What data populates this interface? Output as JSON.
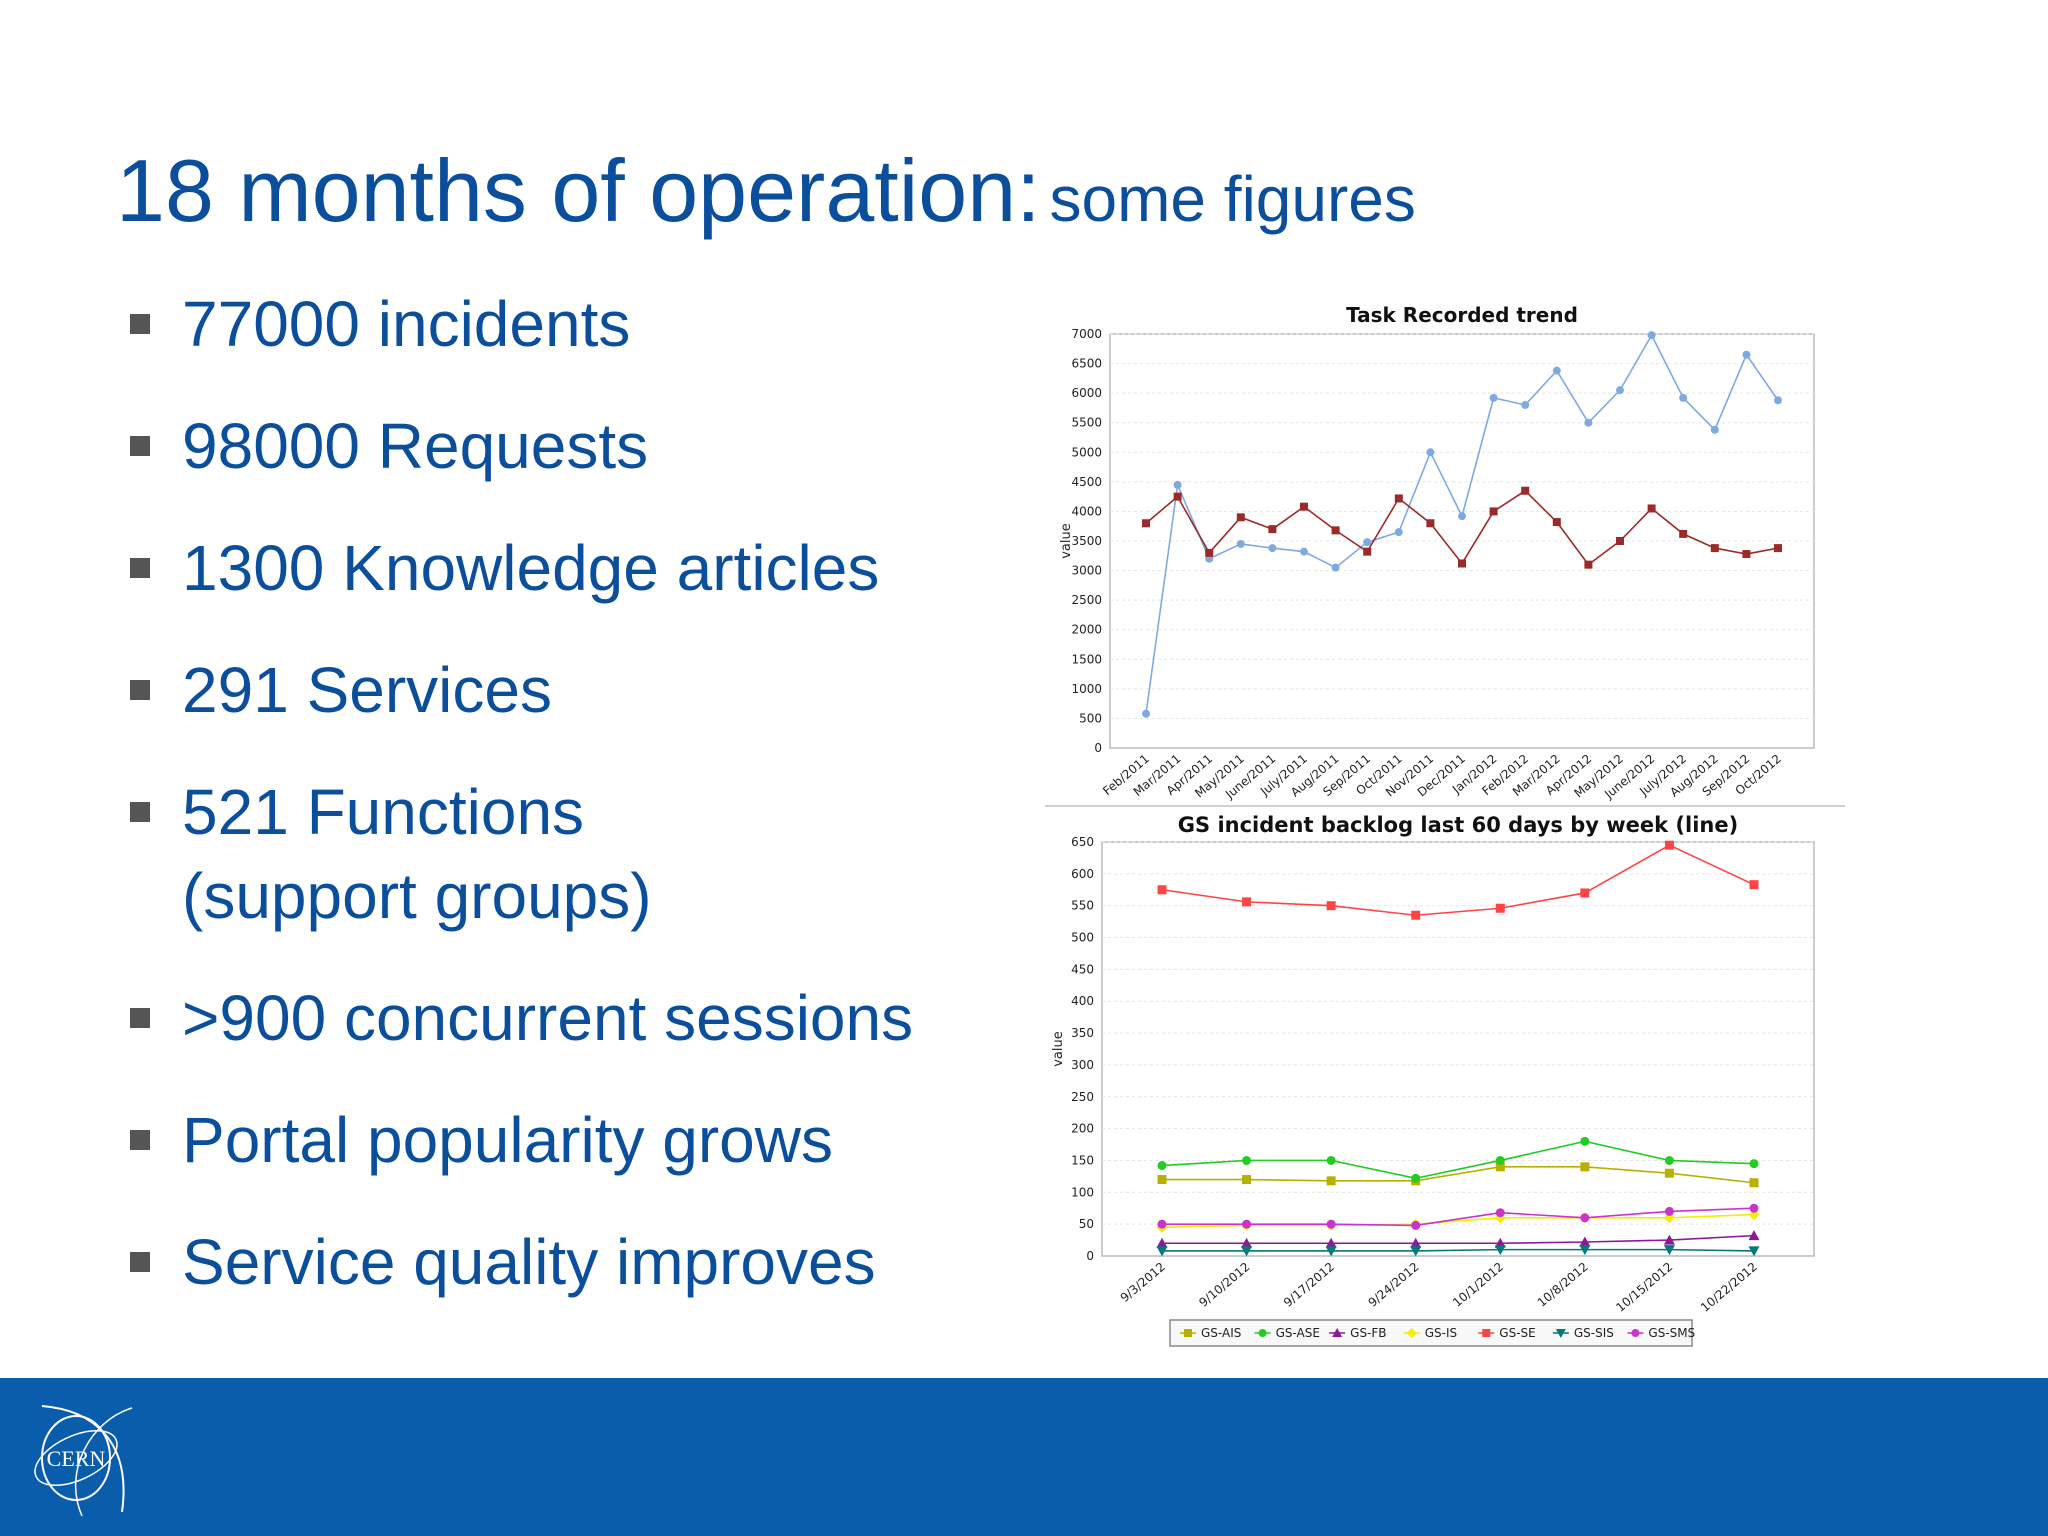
{
  "slide": {
    "title_main": "18 months of operation:",
    "title_sub": "some figures",
    "bullets": [
      {
        "text": "77000 incidents"
      },
      {
        "text": "98000 Requests"
      },
      {
        "text": "1300 Knowledge articles"
      },
      {
        "text": "291 Services"
      },
      {
        "text": "521 Functions",
        "text2": "(support groups)"
      },
      {
        "text": ">900 concurrent sessions"
      },
      {
        "text": "Portal popularity grows"
      },
      {
        "text": "Service quality improves"
      }
    ],
    "logo_text": "CERN",
    "colors": {
      "title": "#0b4f9c",
      "footer": "#0a5dab"
    }
  },
  "chart_data": [
    {
      "type": "line",
      "title": "Task Recorded trend",
      "ylabel": "value",
      "xlabel": "",
      "ylim": [
        0,
        7000
      ],
      "yticks": [
        0,
        500,
        1000,
        1500,
        2000,
        2500,
        3000,
        3500,
        4000,
        4500,
        5000,
        5500,
        6000,
        6500,
        7000
      ],
      "categories": [
        "Feb/2011",
        "Mar/2011",
        "Apr/2011",
        "May/2011",
        "June/2011",
        "July/2011",
        "Aug/2011",
        "Sep/2011",
        "Oct/2011",
        "Nov/2011",
        "Dec/2011",
        "Jan/2012",
        "Feb/2012",
        "Mar/2012",
        "Apr/2012",
        "May/2012",
        "June/2012",
        "July/2012",
        "Aug/2012",
        "Sep/2012",
        "Oct/2012"
      ],
      "grid": true,
      "series": [
        {
          "color": "#7ea9e1",
          "marker": "circle",
          "values": [
            580,
            4450,
            3200,
            3450,
            3380,
            3320,
            3050,
            3480,
            3650,
            5000,
            3920,
            5920,
            5800,
            6380,
            5500,
            6050,
            6980,
            5920,
            5380,
            6650,
            5880
          ]
        },
        {
          "color": "#9b2a2a",
          "marker": "square",
          "values": [
            3800,
            4250,
            3300,
            3900,
            3700,
            4080,
            3680,
            3320,
            4220,
            3800,
            3120,
            4000,
            4350,
            3820,
            3100,
            3500,
            4050,
            3620,
            3380,
            3280,
            3380
          ]
        }
      ]
    },
    {
      "type": "line",
      "title": "GS incident backlog last 60 days by week (line)",
      "ylabel": "value",
      "xlabel": "",
      "ylim": [
        0,
        650
      ],
      "yticks": [
        0,
        50,
        100,
        150,
        200,
        250,
        300,
        350,
        400,
        450,
        500,
        550,
        600,
        650
      ],
      "categories": [
        "9/3/2012",
        "9/10/2012",
        "9/17/2012",
        "9/24/2012",
        "10/1/2012",
        "10/8/2012",
        "10/15/2012",
        "10/22/2012"
      ],
      "grid": true,
      "legend": "bottom",
      "series": [
        {
          "name": "GS-AIS",
          "color": "#b8b000",
          "marker": "square",
          "values": [
            120,
            120,
            118,
            118,
            140,
            140,
            130,
            115
          ]
        },
        {
          "name": "GS-ASE",
          "color": "#22cc22",
          "marker": "circle",
          "values": [
            142,
            150,
            150,
            122,
            150,
            180,
            150,
            145
          ]
        },
        {
          "name": "GS-FB",
          "color": "#8a1a9a",
          "marker": "triangle",
          "values": [
            20,
            20,
            20,
            20,
            20,
            22,
            25,
            32
          ]
        },
        {
          "name": "GS-IS",
          "color": "#f0f000",
          "marker": "diamond",
          "values": [
            45,
            48,
            48,
            50,
            60,
            60,
            60,
            65
          ]
        },
        {
          "name": "GS-SE",
          "color": "#ff4444",
          "marker": "square",
          "values": [
            575,
            556,
            550,
            535,
            546,
            570,
            645,
            583
          ]
        },
        {
          "name": "GS-SIS",
          "color": "#007a7a",
          "marker": "triangle-down",
          "values": [
            8,
            8,
            8,
            8,
            10,
            10,
            10,
            8
          ]
        },
        {
          "name": "GS-SMS",
          "color": "#cc33cc",
          "marker": "circle",
          "values": [
            50,
            50,
            50,
            48,
            68,
            60,
            70,
            75
          ]
        }
      ]
    }
  ]
}
